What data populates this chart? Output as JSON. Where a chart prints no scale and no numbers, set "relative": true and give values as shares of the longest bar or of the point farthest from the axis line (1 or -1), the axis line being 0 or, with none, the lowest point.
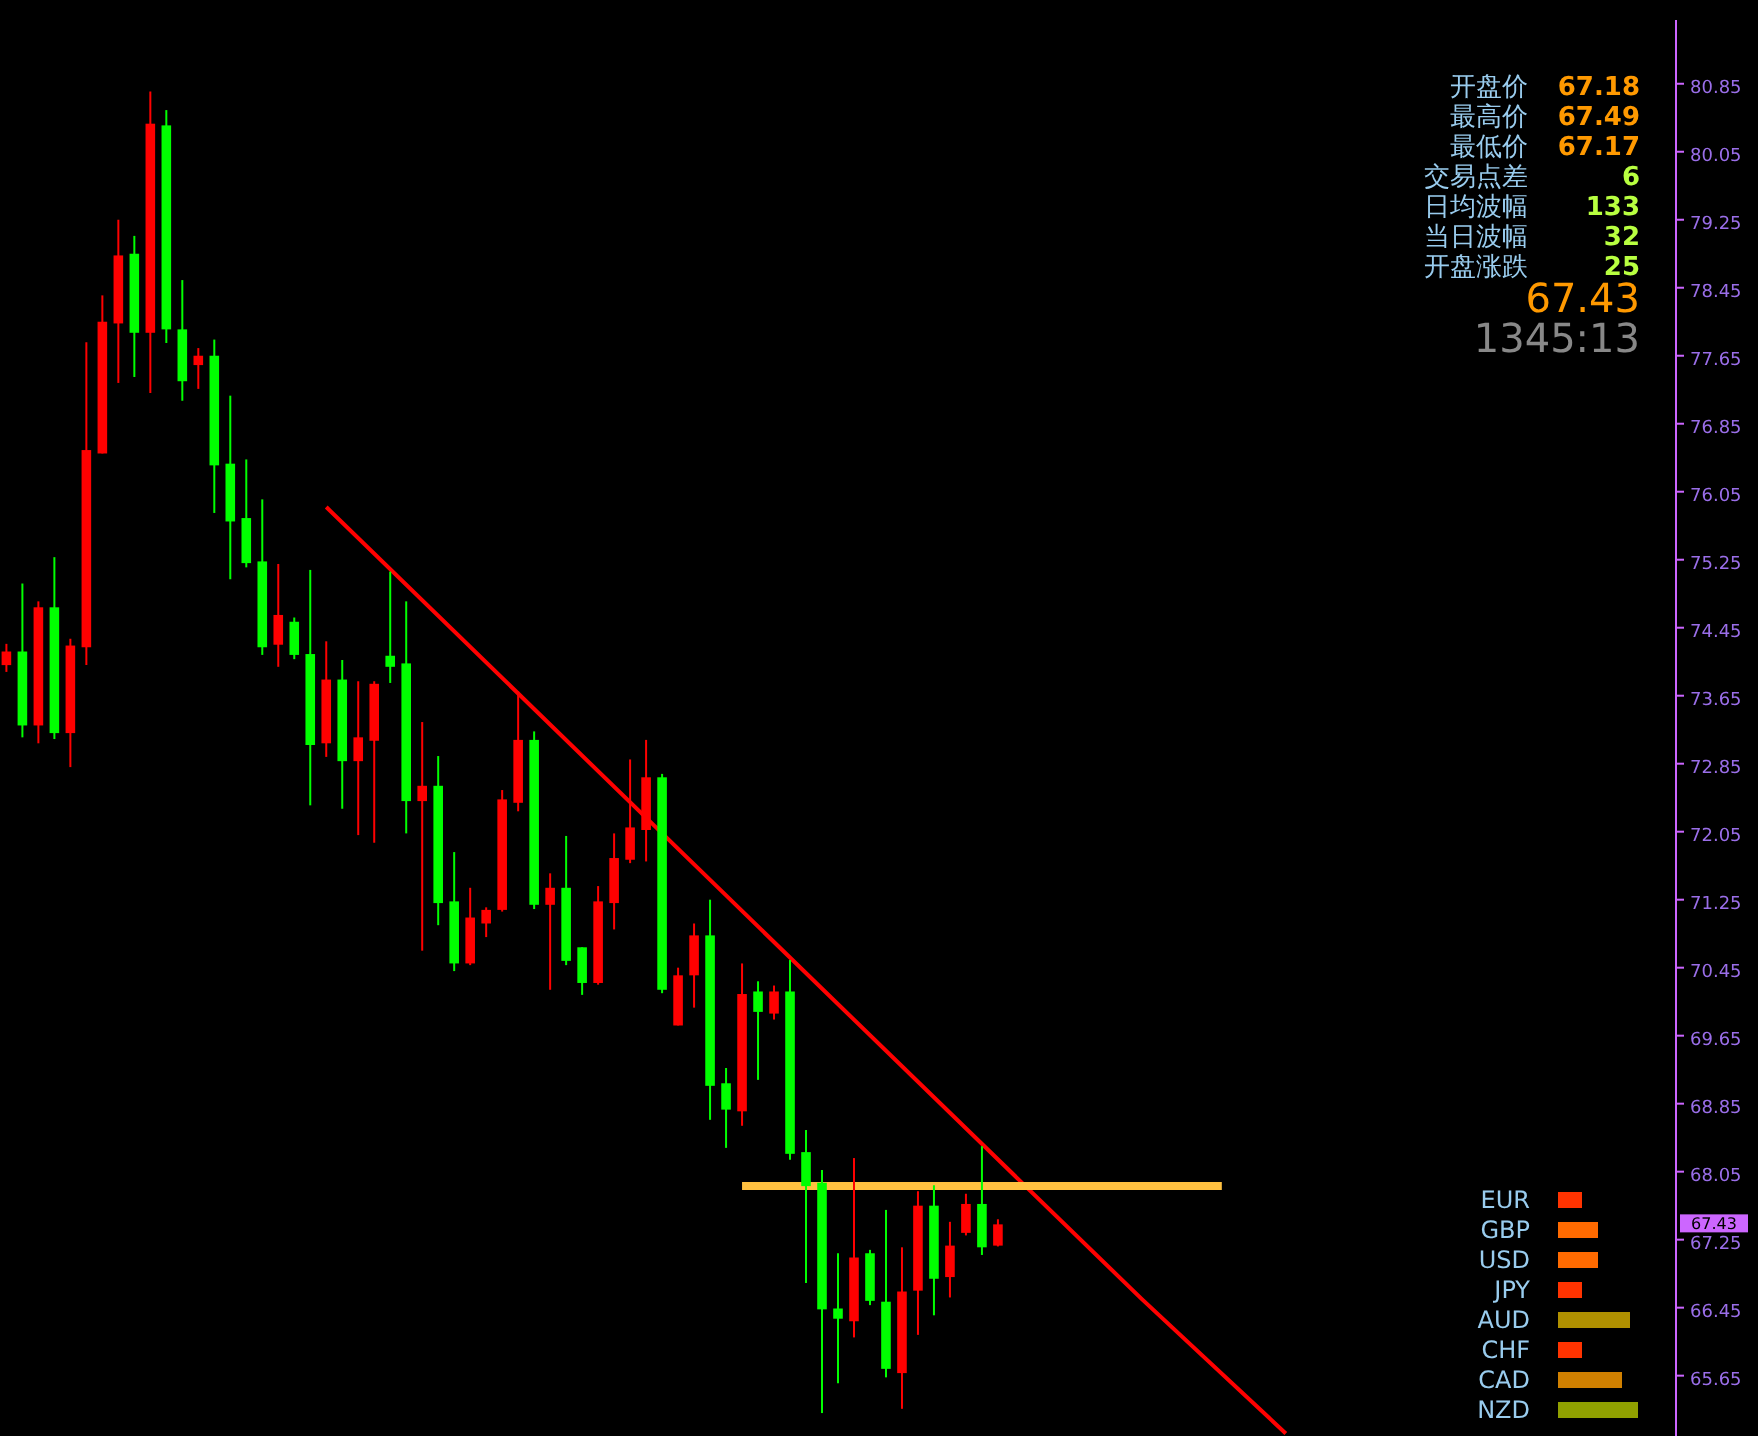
{
  "chart_data": [
    {
      "type": "candlestick",
      "categories": [
        null,
        null,
        null,
        null,
        null,
        null,
        null,
        null,
        null,
        null,
        null,
        null,
        null,
        null,
        null,
        null,
        null,
        null,
        null,
        null,
        null,
        null,
        null,
        null,
        null,
        null,
        null,
        null,
        null,
        null,
        null,
        null,
        null,
        null,
        null,
        null,
        null,
        null,
        null,
        null,
        null,
        null,
        null,
        null,
        null,
        null,
        null,
        null,
        null,
        null,
        null,
        null,
        null,
        null,
        null,
        null,
        null,
        null,
        null,
        null,
        null,
        null,
        null,
        null,
        null,
        null,
        null,
        null,
        null,
        null,
        null,
        null,
        null,
        null,
        null,
        null,
        null,
        null,
        null,
        null,
        null,
        null,
        null,
        null,
        null,
        null,
        null,
        null,
        null,
        null,
        null,
        null,
        null,
        null,
        null,
        null,
        null,
        null,
        null,
        null,
        null,
        null,
        null,
        null,
        null
      ],
      "ohlc": [
        [
          74.01,
          74.26,
          73.93,
          74.17
        ],
        [
          74.17,
          74.97,
          73.16,
          73.3
        ],
        [
          73.3,
          74.76,
          73.09,
          74.69
        ],
        [
          74.69,
          75.28,
          73.14,
          73.21
        ],
        [
          73.21,
          74.32,
          72.81,
          74.24
        ],
        [
          74.22,
          77.81,
          74.01,
          76.54
        ],
        [
          76.5,
          78.36,
          76.5,
          78.05
        ],
        [
          78.03,
          79.25,
          77.33,
          78.83
        ],
        [
          78.85,
          79.06,
          77.4,
          77.92
        ],
        [
          77.92,
          80.76,
          77.21,
          80.38
        ],
        [
          80.36,
          80.54,
          77.8,
          77.96
        ],
        [
          77.96,
          78.54,
          77.12,
          77.35
        ],
        [
          77.54,
          77.74,
          77.26,
          77.65
        ],
        [
          77.65,
          77.84,
          75.8,
          76.36
        ],
        [
          76.38,
          77.18,
          75.02,
          75.7
        ],
        [
          75.74,
          76.43,
          75.16,
          75.21
        ],
        [
          75.23,
          75.96,
          74.13,
          74.22
        ],
        [
          74.25,
          75.2,
          73.99,
          74.6
        ],
        [
          74.52,
          74.57,
          74.08,
          74.13
        ],
        [
          74.14,
          75.13,
          72.36,
          73.07
        ],
        [
          73.09,
          74.29,
          72.93,
          73.84
        ],
        [
          73.84,
          74.07,
          72.32,
          72.88
        ],
        [
          72.88,
          73.82,
          72.01,
          73.16
        ],
        [
          73.12,
          73.82,
          71.92,
          73.79
        ],
        [
          74.12,
          75.11,
          73.8,
          73.99
        ],
        [
          74.03,
          74.76,
          72.03,
          72.41
        ],
        [
          72.41,
          73.34,
          70.65,
          72.59
        ],
        [
          72.59,
          72.94,
          70.95,
          71.21
        ],
        [
          71.23,
          71.81,
          70.41,
          70.5
        ],
        [
          70.5,
          71.39,
          70.48,
          71.04
        ],
        [
          70.97,
          71.16,
          70.81,
          71.13
        ],
        [
          71.13,
          72.54,
          71.11,
          72.43
        ],
        [
          72.39,
          73.7,
          72.29,
          73.13
        ],
        [
          73.13,
          73.23,
          71.14,
          71.19
        ],
        [
          71.19,
          71.56,
          70.19,
          71.39
        ],
        [
          71.39,
          72.0,
          70.48,
          70.53
        ],
        [
          70.69,
          70.69,
          70.13,
          70.27
        ],
        [
          70.27,
          71.41,
          70.25,
          71.23
        ],
        [
          71.21,
          72.03,
          70.9,
          71.74
        ],
        [
          71.72,
          72.9,
          71.68,
          72.1
        ],
        [
          72.07,
          73.13,
          71.7,
          72.69
        ],
        [
          72.69,
          72.73,
          70.15,
          70.19
        ],
        [
          69.77,
          70.45,
          69.77,
          70.36
        ],
        [
          70.36,
          70.97,
          69.98,
          70.83
        ],
        [
          70.83,
          71.25,
          68.66,
          69.06
        ],
        [
          69.09,
          69.27,
          68.33,
          68.78
        ],
        [
          68.76,
          70.5,
          68.59,
          70.14
        ],
        [
          70.17,
          70.29,
          69.13,
          69.93
        ],
        [
          69.91,
          70.24,
          69.84,
          70.17
        ],
        [
          70.17,
          70.54,
          68.19,
          68.26
        ],
        [
          68.28,
          68.54,
          66.74,
          67.88
        ],
        [
          67.92,
          68.07,
          65.21,
          66.43
        ],
        [
          66.44,
          67.09,
          65.56,
          66.32
        ],
        [
          66.29,
          68.21,
          66.1,
          67.04
        ],
        [
          67.09,
          67.13,
          66.48,
          66.53
        ],
        [
          66.52,
          67.6,
          65.63,
          65.73
        ],
        [
          65.68,
          67.16,
          65.26,
          66.64
        ],
        [
          66.65,
          67.82,
          66.13,
          67.65
        ],
        [
          67.65,
          67.89,
          66.36,
          66.79
        ],
        [
          66.81,
          67.46,
          66.57,
          67.18
        ],
        [
          67.33,
          67.79,
          67.3,
          67.67
        ],
        [
          67.67,
          68.35,
          67.07,
          67.16
        ],
        [
          67.18,
          67.49,
          67.17,
          67.43
        ],
        null,
        null,
        null,
        null,
        null,
        null,
        null,
        null,
        null,
        null,
        null,
        null,
        null,
        null,
        null,
        null,
        null,
        null,
        null,
        null,
        null,
        null,
        null,
        null,
        null,
        null,
        null,
        null,
        null,
        null,
        null,
        null,
        null,
        null,
        null,
        null,
        null,
        null,
        null,
        null,
        null,
        null
      ],
      "colors": [
        "#ff0000",
        "#00ff00",
        "#ff0000",
        "#00ff00",
        "#ff0000",
        "#ff0000",
        "#ff0000",
        "#ff0000",
        "#00ff00",
        "#ff0000",
        "#00ff00",
        "#00ff00",
        "#ff0000",
        "#00ff00",
        "#00ff00",
        "#00ff00",
        "#00ff00",
        "#ff0000",
        "#00ff00",
        "#00ff00",
        "#ff0000",
        "#00ff00",
        "#ff0000",
        "#ff0000",
        "#00ff00",
        "#00ff00",
        "#ff0000",
        "#00ff00",
        "#00ff00",
        "#ff0000",
        "#ff0000",
        "#ff0000",
        "#ff0000",
        "#00ff00",
        "#ff0000",
        "#00ff00",
        "#00ff00",
        "#ff0000",
        "#ff0000",
        "#ff0000",
        "#ff0000",
        "#00ff00",
        "#ff0000",
        "#ff0000",
        "#00ff00",
        "#00ff00",
        "#ff0000",
        "#00ff00",
        "#ff0000",
        "#00ff00",
        "#00ff00",
        "#00ff00",
        "#00ff00",
        "#ff0000",
        "#00ff00",
        "#00ff00",
        "#ff0000",
        "#ff0000",
        "#00ff00",
        "#ff0000",
        "#ff0000",
        "#00ff00",
        "#ff0000",
        null,
        null,
        null,
        null,
        null,
        null,
        null,
        null,
        null,
        null,
        null,
        null,
        null,
        null,
        null,
        null,
        null,
        null,
        null,
        null,
        null,
        null,
        null,
        null,
        null,
        null,
        null,
        null,
        null,
        null,
        null,
        null,
        null,
        null,
        null,
        null,
        null,
        null,
        null,
        null,
        null,
        null
      ],
      "series": [
        {
          "type": "line",
          "color": "#ff0000",
          "values": [
            null,
            null,
            null,
            null,
            null,
            null,
            null,
            null,
            null,
            null,
            null,
            null,
            null,
            null,
            null,
            null,
            null,
            null,
            null,
            null,
            75.87,
            null,
            null,
            null,
            null,
            null,
            null,
            null,
            null,
            null,
            null,
            null,
            null,
            null,
            null,
            null,
            null,
            null,
            null,
            null,
            null,
            null,
            null,
            null,
            null,
            71.3,
            null,
            null,
            null,
            null,
            null,
            null,
            null,
            null,
            null,
            null,
            null,
            null,
            null,
            null,
            null,
            null,
            null,
            null,
            null,
            null,
            null,
            null,
            null,
            null,
            null,
            66.55,
            null,
            null,
            null,
            null,
            null,
            null,
            null,
            null,
            64.97,
            null,
            null,
            null,
            null,
            null,
            null,
            null,
            null,
            null,
            null,
            null,
            null,
            null,
            null,
            null,
            null,
            null,
            null,
            null,
            null,
            null,
            null,
            null,
            null
          ]
        },
        {
          "type": "line",
          "color": "#ffc040",
          "values": [
            null,
            null,
            null,
            null,
            null,
            null,
            null,
            null,
            null,
            null,
            null,
            null,
            null,
            null,
            null,
            null,
            null,
            null,
            null,
            null,
            null,
            null,
            null,
            null,
            null,
            null,
            null,
            null,
            null,
            null,
            null,
            null,
            null,
            null,
            null,
            null,
            null,
            null,
            null,
            null,
            null,
            null,
            null,
            null,
            null,
            null,
            67.88,
            null,
            null,
            null,
            null,
            null,
            null,
            null,
            null,
            null,
            null,
            null,
            null,
            null,
            null,
            null,
            null,
            null,
            null,
            null,
            null,
            null,
            null,
            null,
            null,
            null,
            null,
            null,
            null,
            null,
            67.88,
            null,
            null,
            null,
            null,
            null,
            null,
            null,
            null,
            null,
            null,
            null,
            null,
            null,
            null,
            null,
            null,
            null,
            null,
            null,
            null,
            null,
            null,
            null,
            null,
            null,
            null,
            null,
            null
          ]
        }
      ],
      "ylim": [
        64.94,
        81.6
      ],
      "yticks": [
        80.85,
        80.05,
        79.25,
        78.45,
        77.65,
        76.85,
        76.05,
        75.25,
        74.45,
        73.65,
        72.85,
        72.05,
        71.25,
        70.45,
        69.65,
        68.85,
        68.05,
        67.25,
        66.45,
        65.65
      ],
      "tick_labels": "y",
      "annotations": [
        "开盘价",
        "67.18",
        "最高价",
        "67.49",
        "最低价",
        "67.17",
        "交易点差",
        "6",
        "日均波幅",
        "133",
        "当日波幅",
        "32",
        "开盘涨跌",
        "25",
        "67.43",
        "1345:13",
        "67.43"
      ]
    },
    {
      "type": "bar",
      "orientation": "horizontal",
      "relative": true,
      "categories": [
        "EUR",
        "GBP",
        "USD",
        "JPY",
        "AUD",
        "CHF",
        "CAD",
        "NZD"
      ],
      "values": [
        0.3,
        0.5,
        0.5,
        0.3,
        0.9,
        0.3,
        0.8,
        1.0
      ],
      "colors": [
        "#ff3300",
        "#ff6a00",
        "#ff6a00",
        "#ff3300",
        "#b09000",
        "#ff3300",
        "#d08000",
        "#90a000"
      ]
    }
  ]
}
